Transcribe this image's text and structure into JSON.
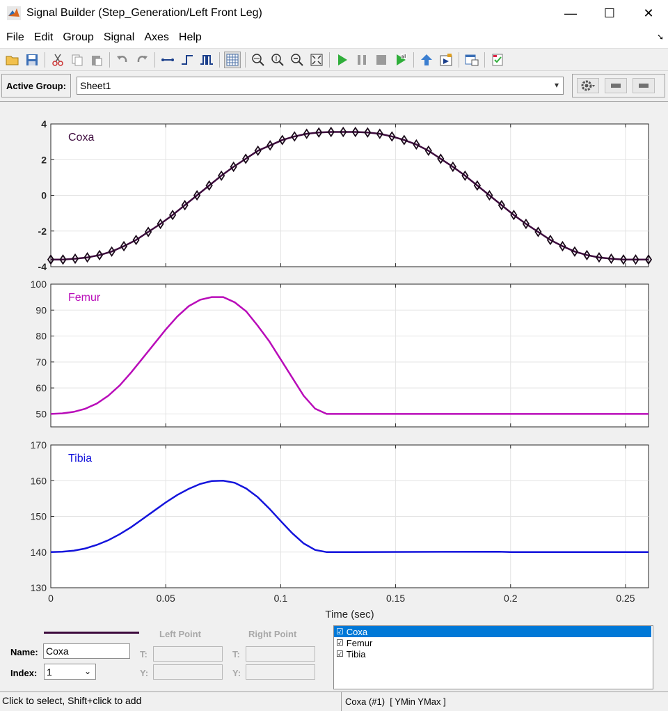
{
  "window": {
    "title": "Signal Builder (Step_Generation/Left Front Leg)",
    "minimize": "—",
    "maximize": "☐",
    "close": "✕"
  },
  "menu": {
    "items": [
      "File",
      "Edit",
      "Group",
      "Signal",
      "Axes",
      "Help"
    ]
  },
  "toolbar": {
    "buttons": [
      "open-icon",
      "save-icon",
      "cut-icon",
      "copy-icon",
      "paste-icon",
      "undo-icon",
      "redo-icon",
      "line-segment-icon",
      "step-up-icon",
      "pulse-icon",
      "grid-icon",
      "zoom-x-icon",
      "zoom-y-icon",
      "zoom-out-icon",
      "fit-icon",
      "play-icon",
      "pause-icon",
      "stop-icon",
      "run-all-icon",
      "up-arrow-icon",
      "block-icon",
      "report-icon",
      "check-icon"
    ]
  },
  "active_group": {
    "label": "Active Group:",
    "value": "Sheet1"
  },
  "signal_panel": {
    "left_point": "Left Point",
    "right_point": "Right Point",
    "name_label": "Name:",
    "name_value": "Coxa",
    "index_label": "Index:",
    "index_value": "1",
    "t_label": "T:",
    "y_label": "Y:",
    "line_color": "#3d0a3d"
  },
  "signal_list": [
    {
      "name": "Coxa",
      "checked": true,
      "selected": true
    },
    {
      "name": "Femur",
      "checked": true,
      "selected": false
    },
    {
      "name": "Tibia",
      "checked": true,
      "selected": false
    }
  ],
  "status": {
    "left": "Click to select, Shift+click to add",
    "right": "Coxa (#1)  [ YMin YMax ]"
  },
  "chart_data": [
    {
      "type": "line",
      "name": "Coxa",
      "color": "#3d0a3d",
      "markers": true,
      "xlim": [
        0,
        0.26
      ],
      "ylim": [
        -4,
        4
      ],
      "yticks": [
        -4,
        -2,
        0,
        2,
        4
      ],
      "x": [
        0,
        0.0053,
        0.0106,
        0.0159,
        0.0212,
        0.0265,
        0.0318,
        0.0371,
        0.0424,
        0.0477,
        0.053,
        0.0583,
        0.0636,
        0.0689,
        0.0742,
        0.0795,
        0.0848,
        0.0901,
        0.0954,
        0.1007,
        0.106,
        0.1113,
        0.1166,
        0.1219,
        0.1272,
        0.1325,
        0.1378,
        0.1431,
        0.1484,
        0.1537,
        0.159,
        0.1643,
        0.1696,
        0.1749,
        0.1802,
        0.1855,
        0.1908,
        0.1961,
        0.2014,
        0.2067,
        0.212,
        0.2173,
        0.2226,
        0.2279,
        0.2332,
        0.2385,
        0.2438,
        0.2491,
        0.2544,
        0.26
      ],
      "y": [
        -3.6,
        -3.6,
        -3.55,
        -3.48,
        -3.35,
        -3.15,
        -2.85,
        -2.5,
        -2.05,
        -1.6,
        -1.1,
        -0.55,
        0.0,
        0.55,
        1.1,
        1.6,
        2.05,
        2.5,
        2.8,
        3.1,
        3.3,
        3.45,
        3.52,
        3.55,
        3.55,
        3.55,
        3.52,
        3.45,
        3.3,
        3.1,
        2.85,
        2.5,
        2.05,
        1.6,
        1.1,
        0.55,
        0.0,
        -0.55,
        -1.1,
        -1.6,
        -2.05,
        -2.5,
        -2.85,
        -3.15,
        -3.35,
        -3.48,
        -3.55,
        -3.6,
        -3.6,
        -3.6
      ]
    },
    {
      "type": "line",
      "name": "Femur",
      "color": "#b90cb9",
      "markers": false,
      "xlim": [
        0,
        0.26
      ],
      "ylim": [
        45,
        100
      ],
      "yticks": [
        50,
        60,
        70,
        80,
        90,
        100
      ],
      "x": [
        0,
        0.005,
        0.01,
        0.015,
        0.02,
        0.025,
        0.03,
        0.035,
        0.04,
        0.045,
        0.05,
        0.055,
        0.06,
        0.065,
        0.07,
        0.075,
        0.08,
        0.085,
        0.09,
        0.095,
        0.1,
        0.105,
        0.11,
        0.115,
        0.12,
        0.125,
        0.13,
        0.26
      ],
      "y": [
        50,
        50.2,
        50.8,
        52,
        54,
        57,
        61,
        66,
        71.5,
        77,
        82.5,
        87.5,
        91.5,
        94,
        95,
        95,
        93,
        89.5,
        84,
        78,
        71,
        64,
        57,
        52,
        50,
        50,
        50,
        50
      ]
    },
    {
      "type": "line",
      "name": "Tibia",
      "color": "#1414dc",
      "markers": false,
      "xlim": [
        0,
        0.26
      ],
      "ylim": [
        130,
        170
      ],
      "yticks": [
        130,
        140,
        150,
        160,
        170
      ],
      "xticks": [
        0,
        0.05,
        0.1,
        0.15,
        0.2,
        0.25
      ],
      "xlabel": "Time (sec)",
      "x": [
        0,
        0.005,
        0.01,
        0.015,
        0.02,
        0.025,
        0.03,
        0.035,
        0.04,
        0.045,
        0.05,
        0.055,
        0.06,
        0.065,
        0.07,
        0.075,
        0.08,
        0.085,
        0.09,
        0.095,
        0.1,
        0.105,
        0.11,
        0.115,
        0.12,
        0.125,
        0.13,
        0.195,
        0.2,
        0.26
      ],
      "y": [
        140,
        140.1,
        140.4,
        141,
        142,
        143.3,
        145,
        147,
        149.3,
        151.6,
        153.9,
        156,
        157.7,
        159.1,
        159.9,
        160,
        159.4,
        157.8,
        155.4,
        152.2,
        148.7,
        145.3,
        142.4,
        140.6,
        140,
        140,
        140,
        140.1,
        140,
        140
      ]
    }
  ]
}
